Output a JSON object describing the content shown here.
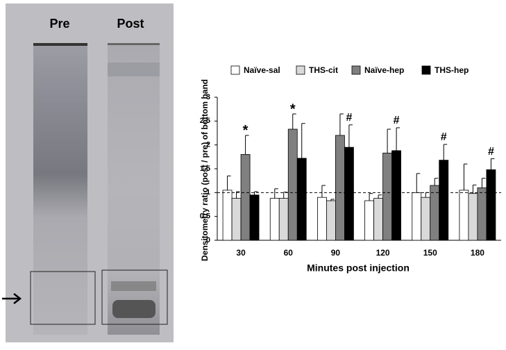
{
  "gel": {
    "lanes": [
      "Pre",
      "Post"
    ]
  },
  "chart_data": {
    "type": "bar",
    "categories": [
      "30",
      "60",
      "90",
      "120",
      "150",
      "180"
    ],
    "x_label": "Minutes post injection",
    "y_label": "Densitometry ratio (post / pre) of  bottom  band",
    "ylim": [
      0,
      3
    ],
    "yticks": [
      0,
      {
        "value": 0.5,
        "label": "0.5"
      },
      1,
      {
        "value": 1.5,
        "label": "1.5"
      },
      2,
      {
        "value": 2.5,
        "label": "2.5"
      },
      3
    ],
    "reference_line": 1,
    "series": [
      {
        "name": "Naïve-sal",
        "color": "#ffffff",
        "values": [
          1.05,
          0.88,
          0.9,
          0.83,
          1.0,
          1.05
        ],
        "errors": [
          0.3,
          0.2,
          0.25,
          0.15,
          0.4,
          0.55
        ]
      },
      {
        "name": "THS-cit",
        "color": "#d9d9d9",
        "values": [
          0.88,
          0.88,
          0.83,
          0.88,
          0.9,
          0.98
        ],
        "errors": [
          0.14,
          0.13,
          0.03,
          0.07,
          0.1,
          0.18
        ]
      },
      {
        "name": "Naïve-hep",
        "color": "#808080",
        "values": [
          1.8,
          2.33,
          2.2,
          1.83,
          1.15,
          1.1
        ],
        "errors": [
          0.4,
          0.32,
          0.45,
          0.5,
          0.15,
          0.2
        ]
      },
      {
        "name": "THS-hep",
        "color": "#000000",
        "values": [
          0.95,
          1.72,
          1.95,
          1.88,
          1.68,
          1.48
        ],
        "errors": [
          0.07,
          0.73,
          0.47,
          0.48,
          0.33,
          0.23
        ]
      }
    ],
    "annotations": [
      {
        "text": "*",
        "category": "30",
        "series": "Naïve-hep"
      },
      {
        "text": "*",
        "category": "60",
        "series": "Naïve-hep"
      },
      {
        "text": "#",
        "category": "90",
        "series": "THS-hep"
      },
      {
        "text": "#",
        "category": "120",
        "series": "THS-hep"
      },
      {
        "text": "#",
        "category": "150",
        "series": "THS-hep"
      },
      {
        "text": "#",
        "category": "180",
        "series": "THS-hep"
      }
    ]
  }
}
